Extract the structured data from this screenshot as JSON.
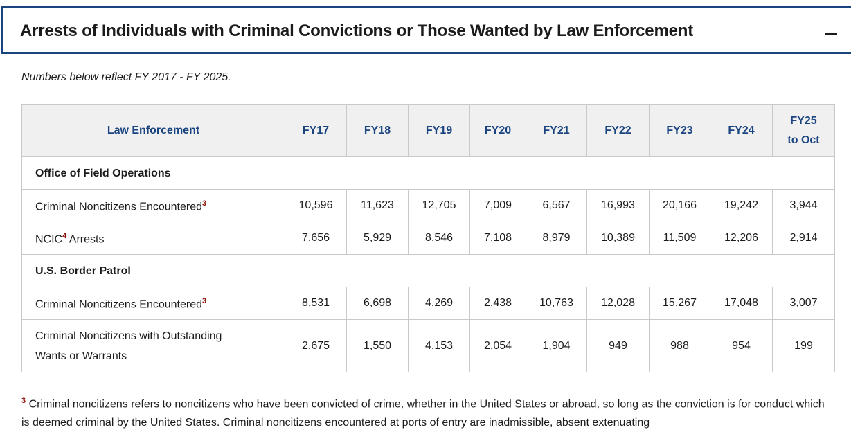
{
  "header": {
    "title": "Arrests of Individuals with Criminal Convictions or Those Wanted by Law Enforcement",
    "toggle": "—"
  },
  "intro": "Numbers below reflect FY 2017 - FY 2025.",
  "table": {
    "columns": [
      "Law Enforcement",
      "FY17",
      "FY18",
      "FY19",
      "FY20",
      "FY21",
      "FY22",
      "FY23",
      "FY24",
      [
        "FY25",
        "to Oct"
      ]
    ],
    "rows": [
      {
        "section": "Office of Field Operations"
      },
      {
        "label": "Criminal Noncitizens Encountered",
        "sup": "3",
        "values": [
          "10,596",
          "11,623",
          "12,705",
          "7,009",
          "6,567",
          "16,993",
          "20,166",
          "19,242",
          "3,944"
        ]
      },
      {
        "label": "NCIC",
        "sup": "4",
        "label_after": " Arrests",
        "values": [
          "7,656",
          "5,929",
          "8,546",
          "7,108",
          "8,979",
          "10,389",
          "11,509",
          "12,206",
          "2,914"
        ]
      },
      {
        "section": "U.S. Border Patrol"
      },
      {
        "label": "Criminal Noncitizens Encountered",
        "sup": "3",
        "values": [
          "8,531",
          "6,698",
          "4,269",
          "2,438",
          "10,763",
          "12,028",
          "15,267",
          "17,048",
          "3,007"
        ]
      },
      {
        "label": [
          "Criminal Noncitizens with Outstanding",
          "Wants or Warrants"
        ],
        "values": [
          "2,675",
          "1,550",
          "4,153",
          "2,054",
          "1,904",
          "949",
          "988",
          "954",
          "199"
        ]
      }
    ]
  },
  "footnote": {
    "sup": "3",
    "text": "Criminal noncitizens refers to noncitizens who have been convicted of crime, whether in the United States or abroad, so long as the conviction is for conduct which is deemed criminal by the United States. Criminal noncitizens encountered at ports of entry are inadmissible, absent extenuating"
  }
}
